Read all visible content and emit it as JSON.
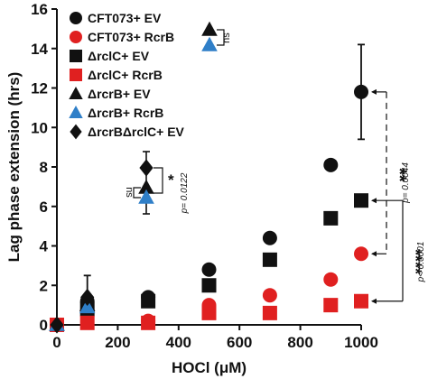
{
  "chart_data": {
    "type": "scatter",
    "xlabel": "HOCl (μM)",
    "ylabel": "Lag phase extension (hrs)",
    "xlim": [
      0,
      1000
    ],
    "ylim": [
      0,
      16
    ],
    "xticks": [
      "0",
      "200",
      "400",
      "600",
      "800",
      "1000"
    ],
    "yticks": [
      "0",
      "2",
      "4",
      "6",
      "8",
      "10",
      "12",
      "14",
      "16"
    ],
    "grid": false,
    "legend_position": "top-left",
    "series": [
      {
        "name": "CFT073+ EV",
        "color": "#111111",
        "marker": "circle",
        "points": [
          {
            "x": 0,
            "y": 0
          },
          {
            "x": 100,
            "y": 1.2
          },
          {
            "x": 300,
            "y": 1.4
          },
          {
            "x": 500,
            "y": 2.8
          },
          {
            "x": 700,
            "y": 4.4
          },
          {
            "x": 900,
            "y": 8.1
          },
          {
            "x": 1000,
            "y": 11.8,
            "err": 2.4
          }
        ]
      },
      {
        "name": "CFT073+ RcrB",
        "color": "#e02020",
        "marker": "circle",
        "points": [
          {
            "x": 0,
            "y": 0
          },
          {
            "x": 100,
            "y": 0.7
          },
          {
            "x": 300,
            "y": 0.2
          },
          {
            "x": 500,
            "y": 1.0
          },
          {
            "x": 700,
            "y": 1.5
          },
          {
            "x": 900,
            "y": 2.3
          },
          {
            "x": 1000,
            "y": 3.6
          }
        ]
      },
      {
        "name": "ΔrclC+ EV",
        "color": "#111111",
        "marker": "square",
        "points": [
          {
            "x": 0,
            "y": 0
          },
          {
            "x": 100,
            "y": 0.8
          },
          {
            "x": 300,
            "y": 1.2
          },
          {
            "x": 500,
            "y": 2.0
          },
          {
            "x": 700,
            "y": 3.3
          },
          {
            "x": 900,
            "y": 5.4
          },
          {
            "x": 1000,
            "y": 6.3
          }
        ]
      },
      {
        "name": "ΔrclC+ RcrB",
        "color": "#e02020",
        "marker": "square",
        "points": [
          {
            "x": 0,
            "y": 0
          },
          {
            "x": 100,
            "y": 0.1
          },
          {
            "x": 300,
            "y": 0.1
          },
          {
            "x": 500,
            "y": 0.6
          },
          {
            "x": 700,
            "y": 0.6
          },
          {
            "x": 900,
            "y": 1.0
          },
          {
            "x": 1000,
            "y": 1.2
          }
        ]
      },
      {
        "name": "ΔrcrB+ EV",
        "color": "#111111",
        "marker": "triangle",
        "points": [
          {
            "x": 0,
            "y": 0
          },
          {
            "x": 100,
            "y": 1.0
          }
        ]
      },
      {
        "name": "ΔrcrB+ RcrB",
        "color": "#2f7fc8",
        "marker": "triangle",
        "points": [
          {
            "x": 0,
            "y": 0
          },
          {
            "x": 100,
            "y": 0.9
          }
        ]
      },
      {
        "name": "ΔrcrBΔrclC+ EV",
        "color": "#111111",
        "marker": "diamond",
        "points": [
          {
            "x": 0,
            "y": 0
          },
          {
            "x": 100,
            "y": 1.4,
            "err": 1.1
          }
        ]
      }
    ],
    "annotations": {
      "sig_double": "**",
      "p_double": "p= 0.0044",
      "sig_quad": "****",
      "p_quad": "p< 0.0001",
      "sig_single": "*",
      "p_single": "p= 0.0122",
      "ns": "ns"
    }
  }
}
